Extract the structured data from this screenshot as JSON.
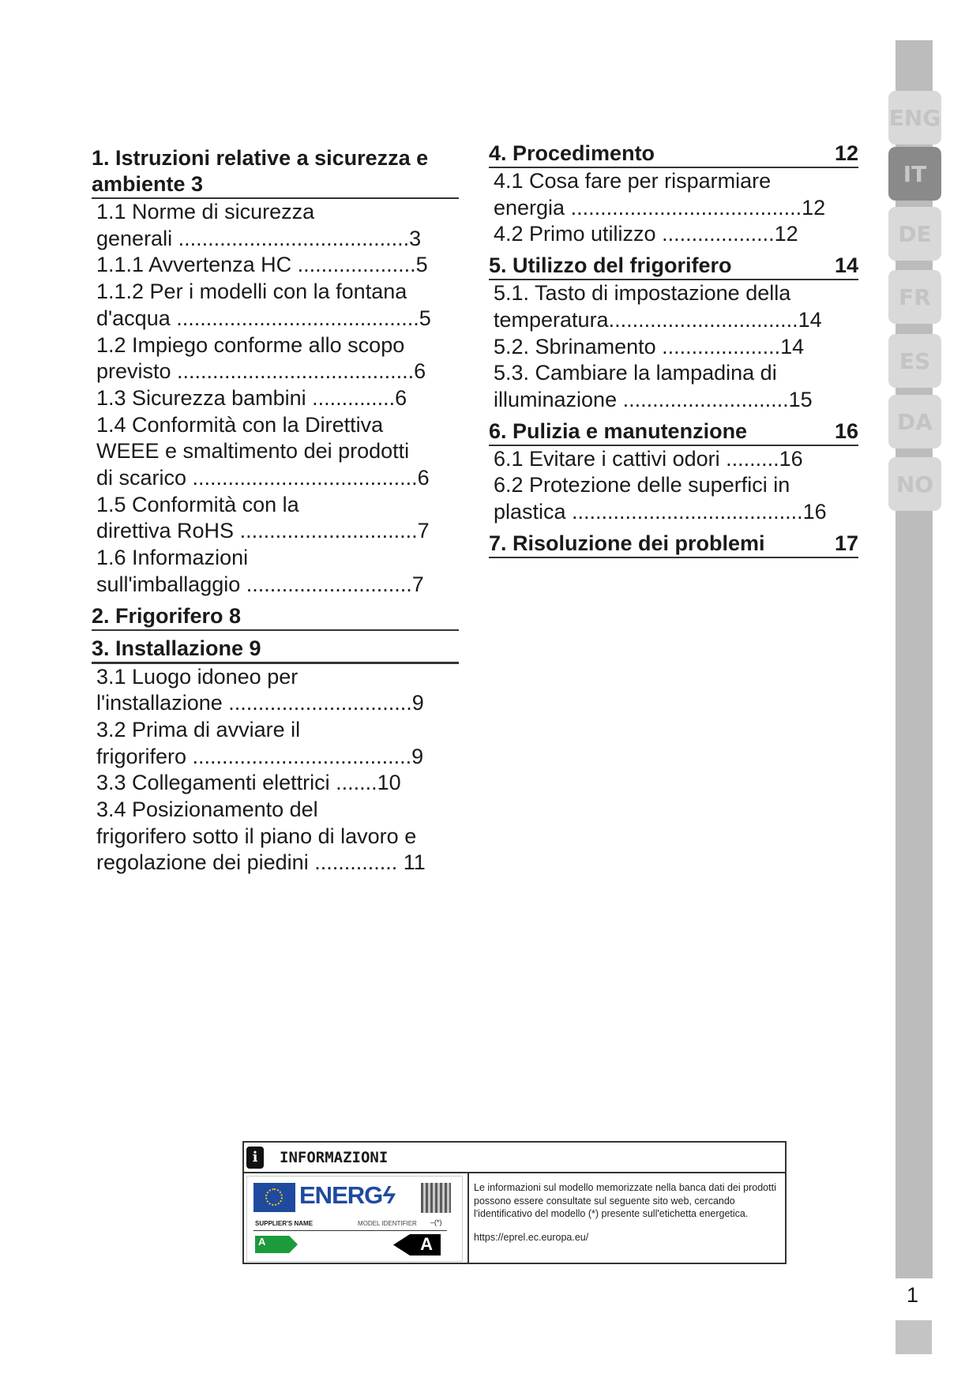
{
  "toc": {
    "left": [
      {
        "heading_lines": [
          "1.  Istruzioni relative a sicurezza e",
          "ambiente  3"
        ],
        "items": [
          {
            "lines": [
              "1.1   Norme di sicurezza",
              "generali .......................................3"
            ]
          },
          {
            "lines": [
              "1.1.1  Avvertenza HC ....................5"
            ]
          },
          {
            "lines": [
              "1.1.2  Per i modelli con la fontana",
              "d'acqua .........................................5"
            ]
          },
          {
            "lines": [
              "1.2 Impiego conforme allo scopo",
              "previsto ........................................6"
            ]
          },
          {
            "lines": [
              "1.3   Sicurezza bambini ..............6"
            ]
          },
          {
            "lines": [
              "1.4   Conformità con la Direttiva",
              "WEEE e smaltimento dei prodotti",
              "di scarico ......................................6"
            ]
          },
          {
            "lines": [
              "1.5   Conformità con la",
              "direttiva RoHS ..............................7"
            ]
          },
          {
            "lines": [
              "1.6   Informazioni",
              "sull'imballaggio ............................7"
            ]
          }
        ]
      },
      {
        "heading_lines": [
          "2.  Frigorifero  8"
        ],
        "items": []
      },
      {
        "heading_lines": [
          "3.  Installazione  9"
        ],
        "items": [
          {
            "lines": [
              "3.1   Luogo idoneo per",
              "l'installazione ...............................9"
            ]
          },
          {
            "lines": [
              "3.2  Prima di avviare il",
              "frigorifero .....................................9"
            ]
          },
          {
            "lines": [
              "3.3  Collegamenti elettrici .......10"
            ]
          },
          {
            "lines": [
              "3.4   Posizionamento del",
              "frigorifero sotto il piano di lavoro e",
              "regolazione dei piedini .............. 11"
            ]
          }
        ]
      }
    ],
    "right": [
      {
        "title": "4.  Procedimento",
        "page": "12",
        "items": [
          {
            "lines": [
              "4.1   Cosa fare per risparmiare",
              "energia .......................................12"
            ]
          },
          {
            "lines": [
              "4.2   Primo utilizzo ...................12"
            ]
          }
        ]
      },
      {
        "title": "5.  Utilizzo del frigorifero",
        "page": "14",
        "items": [
          {
            "lines": [
              "5.1.  Tasto di impostazione della",
              "temperatura................................14"
            ]
          },
          {
            "lines": [
              "5.2.  Sbrinamento ....................14"
            ]
          },
          {
            "lines": [
              "5.3.  Cambiare la lampadina di",
              "illuminazione  ............................15"
            ]
          }
        ]
      },
      {
        "title": "6.  Pulizia e manutenzione",
        "page": "16",
        "items": [
          {
            "lines": [
              "6.1   Evitare i cattivi odori .........16"
            ]
          },
          {
            "lines": [
              "6.2   Protezione delle superfici in",
              "plastica .......................................16"
            ]
          }
        ]
      },
      {
        "title": "7.  Risoluzione dei problemi",
        "page": "17",
        "items": []
      }
    ]
  },
  "language_tabs": [
    {
      "label": "ENG",
      "active": false
    },
    {
      "label": "IT",
      "active": true
    },
    {
      "label": "DE",
      "active": false
    },
    {
      "label": "FR",
      "active": false
    },
    {
      "label": "ES",
      "active": false
    },
    {
      "label": "DA",
      "active": false
    },
    {
      "label": "NO",
      "active": false
    }
  ],
  "page_number": "1",
  "info_box": {
    "icon": "info-icon",
    "title": "INFORMAZIONI",
    "label": {
      "brand": "ENERG",
      "supplier": "SUPPLIER'S NAME",
      "model": "MODEL IDENTIFIER",
      "marker": "(*)",
      "class_left": "A",
      "class_right": "A"
    },
    "text": "Le informazioni sul modello memorizzate nella banca dati dei prodotti possono essere consultate sul seguente sito web, cercando l'identificativo del modello (*) presente sull'etichetta energetica.",
    "url": "https://eprel.ec.europa.eu/"
  },
  "colors": {
    "sidebar": "#bcbcbc",
    "active_tab": "#8a8a8a",
    "tab": "#d9d9d9",
    "energy_blue": "#1f4aa0",
    "energy_green": "#1d9a3b"
  }
}
